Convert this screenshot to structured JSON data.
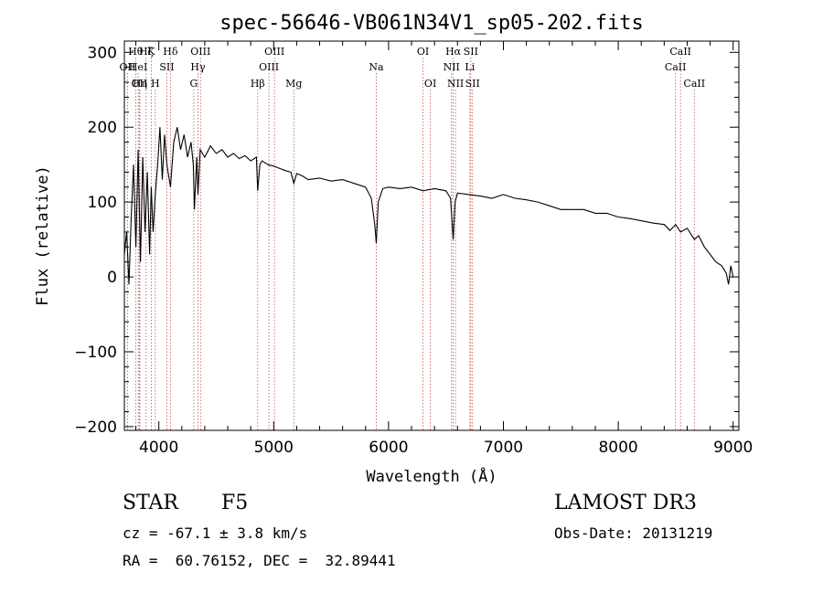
{
  "chart_data": {
    "type": "line",
    "title": "spec-56646-VB061N34V1_sp05-202.fits",
    "xlabel": "Wavelength (Å)",
    "ylabel": "Flux (relative)",
    "xlim": [
      3700,
      9050
    ],
    "ylim": [
      -205,
      315
    ],
    "xticks": [
      4000,
      5000,
      6000,
      7000,
      8000,
      9000
    ],
    "yticks": [
      -200,
      -100,
      0,
      100,
      200,
      300
    ],
    "series": [
      {
        "name": "flux",
        "x": [
          3700,
          3720,
          3740,
          3760,
          3780,
          3800,
          3820,
          3840,
          3860,
          3880,
          3900,
          3920,
          3934,
          3950,
          3969,
          3990,
          4010,
          4030,
          4050,
          4070,
          4101,
          4130,
          4160,
          4190,
          4220,
          4250,
          4280,
          4300,
          4310,
          4330,
          4341,
          4360,
          4400,
          4450,
          4500,
          4550,
          4600,
          4650,
          4700,
          4750,
          4800,
          4850,
          4861,
          4880,
          4900,
          4950,
          5000,
          5050,
          5100,
          5150,
          5175,
          5200,
          5250,
          5300,
          5400,
          5500,
          5600,
          5700,
          5800,
          5850,
          5880,
          5893,
          5910,
          5950,
          6000,
          6100,
          6200,
          6300,
          6400,
          6500,
          6540,
          6563,
          6580,
          6600,
          6700,
          6800,
          6900,
          7000,
          7100,
          7200,
          7300,
          7400,
          7500,
          7600,
          7700,
          7800,
          7900,
          8000,
          8100,
          8200,
          8300,
          8400,
          8450,
          8500,
          8542,
          8600,
          8662,
          8700,
          8750,
          8800,
          8850,
          8900,
          8940,
          8960,
          8980,
          9000
        ],
        "y": [
          30,
          60,
          -10,
          80,
          150,
          40,
          170,
          20,
          160,
          60,
          140,
          30,
          120,
          60,
          110,
          150,
          200,
          130,
          190,
          150,
          120,
          180,
          200,
          170,
          190,
          160,
          180,
          150,
          90,
          160,
          110,
          170,
          160,
          175,
          165,
          170,
          160,
          165,
          158,
          162,
          155,
          160,
          115,
          150,
          155,
          150,
          148,
          145,
          142,
          140,
          125,
          138,
          135,
          130,
          132,
          128,
          130,
          125,
          120,
          105,
          70,
          45,
          100,
          118,
          120,
          118,
          120,
          115,
          118,
          115,
          105,
          50,
          100,
          112,
          110,
          108,
          105,
          110,
          105,
          103,
          100,
          95,
          90,
          90,
          90,
          85,
          85,
          80,
          78,
          75,
          72,
          70,
          62,
          70,
          60,
          65,
          50,
          55,
          40,
          30,
          20,
          15,
          5,
          -10,
          15,
          0
        ]
      }
    ],
    "spectral_lines": [
      {
        "label": "OII",
        "x": 3727,
        "row": 1
      },
      {
        "label": "Hθ",
        "x": 3798,
        "row": 0
      },
      {
        "label": "OII",
        "x": 3830,
        "row": 2
      },
      {
        "label": "HeI",
        "x": 3820,
        "row": 1
      },
      {
        "label": "Hη",
        "x": 3835,
        "row": 2
      },
      {
        "label": "Hζ",
        "x": 3889,
        "row": 0
      },
      {
        "label": "K",
        "x": 3934,
        "row": 0
      },
      {
        "label": "H",
        "x": 3969,
        "row": 2
      },
      {
        "label": "SII",
        "x": 4070,
        "row": 1
      },
      {
        "label": "Hδ",
        "x": 4101,
        "row": 0
      },
      {
        "label": "OIII",
        "x": 4363,
        "row": 0
      },
      {
        "label": "Hγ",
        "x": 4341,
        "row": 1
      },
      {
        "label": "G",
        "x": 4304,
        "row": 2
      },
      {
        "label": "Hβ",
        "x": 4861,
        "row": 2
      },
      {
        "label": "OIII",
        "x": 5007,
        "row": 0
      },
      {
        "label": "OIII",
        "x": 4959,
        "row": 1
      },
      {
        "label": "Mg",
        "x": 5175,
        "row": 2
      },
      {
        "label": "Na",
        "x": 5893,
        "row": 1
      },
      {
        "label": "OI",
        "x": 6300,
        "row": 0
      },
      {
        "label": "OI",
        "x": 6364,
        "row": 2
      },
      {
        "label": "Hα",
        "x": 6563,
        "row": 0
      },
      {
        "label": "NII",
        "x": 6548,
        "row": 1
      },
      {
        "label": "NII",
        "x": 6583,
        "row": 2
      },
      {
        "label": "SII",
        "x": 6716,
        "row": 0
      },
      {
        "label": "Li",
        "x": 6708,
        "row": 1
      },
      {
        "label": "SII",
        "x": 6731,
        "row": 2
      },
      {
        "label": "CaII",
        "x": 8542,
        "row": 0
      },
      {
        "label": "CaII",
        "x": 8498,
        "row": 1
      },
      {
        "label": "CaII",
        "x": 8662,
        "row": 2
      }
    ]
  },
  "info": {
    "class": "STAR",
    "subclass": "F5",
    "survey": "LAMOST DR3",
    "cz": "cz = -67.1 ± 3.8 km/s",
    "obs_date": "Obs-Date: 20131219",
    "radec": "RA =  60.76152, DEC =  32.89441"
  }
}
